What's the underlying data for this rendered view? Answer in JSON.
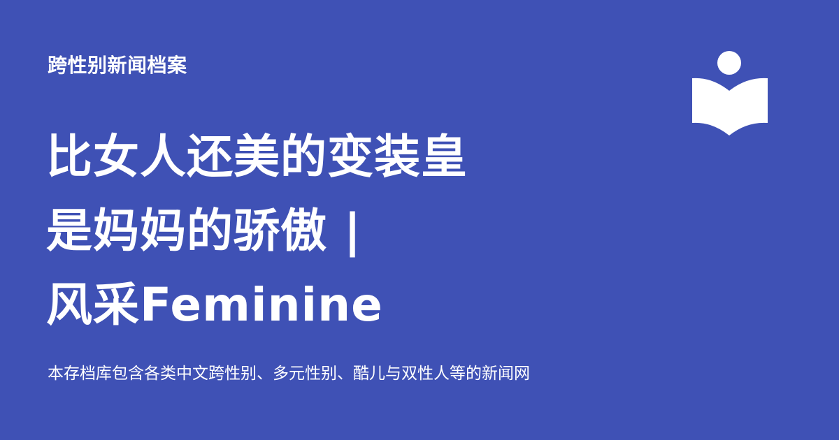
{
  "site": {
    "name": "跨性别新闻档案"
  },
  "article": {
    "title_lines": [
      "比女人还美的变装皇",
      "是妈妈的骄傲 |",
      "风采Feminine"
    ],
    "description": "本存档库包含各类中文跨性别、多元性别、酷儿与双性人等的新闻网"
  },
  "logo": {
    "icon": "open-book-reader-icon",
    "color": "#ffffff"
  },
  "colors": {
    "background": "#3f51b5",
    "text": "#ffffff"
  }
}
